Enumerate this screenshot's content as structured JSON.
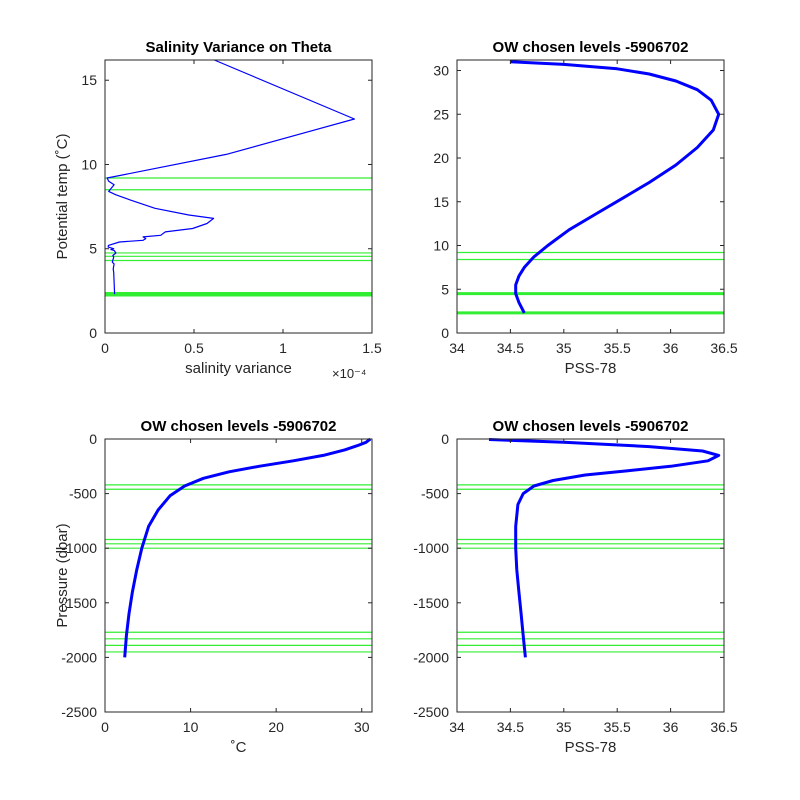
{
  "chart_data": [
    {
      "type": "line",
      "title": "Salinity Variance on Theta",
      "xlabel": "salinity variance",
      "ylabel": "Potential temp (˚C)",
      "xlim": [
        0,
        0.00015
      ],
      "ylim": [
        0,
        16.2
      ],
      "x_exponent_label": "×10⁻⁴",
      "xticks": [
        0,
        5e-05,
        0.0001,
        0.00015
      ],
      "xtick_labels": [
        "0",
        "0.5",
        "1",
        "1.5"
      ],
      "yticks": [
        0,
        5,
        10,
        15
      ],
      "ytick_labels": [
        "0",
        "5",
        "10",
        "15"
      ],
      "grid": false,
      "series": [
        {
          "color": "#0000ff",
          "x": [
            5.4e-06,
            4.9e-06,
            4.6e-06,
            5.1e-06,
            4.1e-06,
            4.9e-06,
            4.4e-06,
            6.1e-06,
            5.1e-06,
            3.3e-06,
            4.9e-06,
            1.8e-06,
            1.9e-06,
            8.1e-06,
            2.14e-05,
            2.29e-05,
            2.14e-05,
            3.13e-05,
            3.39e-05,
            4.92e-05,
            5.73e-05,
            6.1e-05,
            4.71e-05,
            2.81e-05,
            1.41e-05,
            6.1e-06,
            2.1e-06,
            5.1e-06,
            2.1e-06,
            1.2e-06,
            6.81e-05,
            0.0001401,
            6.14e-05
          ],
          "y": [
            2.3,
            3.6,
            3.8,
            4.1,
            4.2,
            4.5,
            4.6,
            4.75,
            4.9,
            4.95,
            5.0,
            5.1,
            5.2,
            5.4,
            5.5,
            5.6,
            5.7,
            5.8,
            6.0,
            6.2,
            6.5,
            6.8,
            7.0,
            7.4,
            7.9,
            8.2,
            8.4,
            8.8,
            9.0,
            9.2,
            10.6,
            12.7,
            16.2
          ]
        }
      ],
      "chosen_levels": [
        2.2,
        2.25,
        2.3,
        2.35,
        2.4,
        4.3,
        4.55,
        4.75,
        8.5,
        9.2
      ]
    },
    {
      "type": "line",
      "title": "OW chosen levels -5906702",
      "xlabel": "PSS-78",
      "ylabel": "",
      "xlim": [
        34,
        36.5
      ],
      "ylim": [
        0,
        31.2
      ],
      "xticks": [
        34,
        34.5,
        35,
        35.5,
        36,
        36.5
      ],
      "xtick_labels": [
        "34",
        "34.5",
        "35",
        "35.5",
        "36",
        "36.5"
      ],
      "yticks": [
        0,
        5,
        10,
        15,
        20,
        25,
        30
      ],
      "ytick_labels": [
        "0",
        "5",
        "10",
        "15",
        "20",
        "25",
        "30"
      ],
      "grid": false,
      "series": [
        {
          "color": "#0000ff",
          "x": [
            34.63,
            34.58,
            34.55,
            34.55,
            34.58,
            34.63,
            34.72,
            34.85,
            35.05,
            35.3,
            35.55,
            35.8,
            36.05,
            36.25,
            36.4,
            36.45,
            36.38,
            36.25,
            36.05,
            35.8,
            35.5,
            35.0,
            34.5
          ],
          "y": [
            2.3,
            3.5,
            4.5,
            5.5,
            6.5,
            7.5,
            8.7,
            10.0,
            11.8,
            13.6,
            15.4,
            17.2,
            19.2,
            21.2,
            23.2,
            25.0,
            26.6,
            27.8,
            28.8,
            29.6,
            30.2,
            30.7,
            31.0
          ]
        }
      ],
      "chosen_levels": [
        2.2,
        2.3,
        2.4,
        4.4,
        4.5,
        4.6,
        8.4,
        9.2
      ]
    },
    {
      "type": "line",
      "title": "OW chosen levels -5906702",
      "xlabel": "˚C",
      "ylabel": "Pressure (dbar)",
      "xlim": [
        0,
        31.2
      ],
      "ylim": [
        -2500,
        0
      ],
      "xticks": [
        0,
        10,
        20,
        30
      ],
      "xtick_labels": [
        "0",
        "10",
        "20",
        "30"
      ],
      "yticks": [
        -2500,
        -2000,
        -1500,
        -1000,
        -500,
        0
      ],
      "ytick_labels": [
        "-2500",
        "-2000",
        "-1500",
        "-1000",
        "-500",
        "0"
      ],
      "grid": false,
      "series": [
        {
          "color": "#0000ff",
          "x": [
            2.3,
            2.5,
            2.8,
            3.2,
            3.7,
            4.3,
            5.1,
            6.2,
            7.6,
            9.3,
            11.5,
            14.5,
            18.0,
            22.0,
            25.5,
            28.0,
            29.5,
            30.5,
            31.0
          ],
          "y": [
            -2000,
            -1800,
            -1600,
            -1400,
            -1200,
            -1000,
            -800,
            -650,
            -520,
            -430,
            -360,
            -300,
            -250,
            -200,
            -150,
            -100,
            -60,
            -30,
            0
          ]
        }
      ],
      "chosen_levels": [
        -1950,
        -1890,
        -1830,
        -1770,
        -1000,
        -960,
        -920,
        -460,
        -420
      ]
    },
    {
      "type": "line",
      "title": "OW chosen levels -5906702",
      "xlabel": "PSS-78",
      "ylabel": "",
      "xlim": [
        34,
        36.5
      ],
      "ylim": [
        -2500,
        0
      ],
      "xticks": [
        34,
        34.5,
        35,
        35.5,
        36,
        36.5
      ],
      "xtick_labels": [
        "34",
        "34.5",
        "35",
        "35.5",
        "36",
        "36.5"
      ],
      "yticks": [
        -2500,
        -2000,
        -1500,
        -1000,
        -500,
        0
      ],
      "ytick_labels": [
        "-2500",
        "-2000",
        "-1500",
        "-1000",
        "-500",
        "0"
      ],
      "grid": false,
      "series": [
        {
          "color": "#0000ff",
          "x": [
            34.64,
            34.62,
            34.6,
            34.58,
            34.56,
            34.55,
            34.55,
            34.57,
            34.62,
            34.72,
            34.9,
            35.2,
            35.6,
            36.0,
            36.35,
            36.45,
            36.3,
            35.8,
            35.0,
            34.3
          ],
          "y": [
            -2000,
            -1800,
            -1600,
            -1400,
            -1200,
            -1000,
            -800,
            -600,
            -500,
            -430,
            -380,
            -330,
            -290,
            -250,
            -200,
            -150,
            -110,
            -70,
            -30,
            -5
          ]
        }
      ],
      "chosen_levels": [
        -1950,
        -1890,
        -1830,
        -1770,
        -1000,
        -960,
        -920,
        -460,
        -420
      ]
    }
  ]
}
